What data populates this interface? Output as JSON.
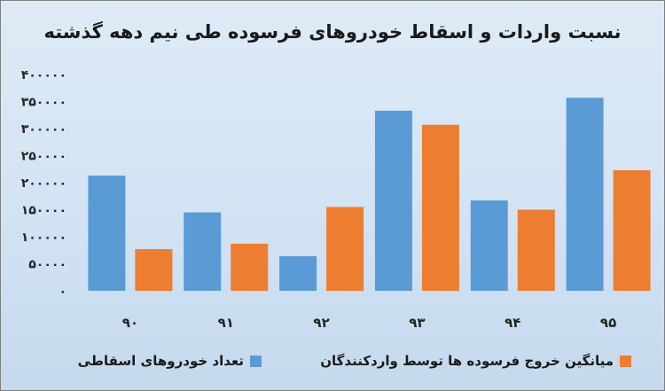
{
  "chart_data": {
    "type": "bar",
    "title": "نسبت واردات و اسقاط خودروهای فرسوده طی نیم دهه گذشته",
    "categories": [
      "۹۰",
      "۹۱",
      "۹۲",
      "۹۳",
      "۹۴",
      "۹۵"
    ],
    "series": [
      {
        "name": "تعداد خودروهای اسقاطی",
        "color": "#5b9bd5",
        "values": [
          213000,
          145000,
          64000,
          333000,
          167000,
          357000
        ]
      },
      {
        "name": "میانگین خروج فرسوده ها توسط واردکنندگان",
        "color": "#ed7d31",
        "values": [
          77000,
          87000,
          155000,
          307000,
          150000,
          223000
        ]
      }
    ],
    "ylim": [
      0,
      400000
    ],
    "yticks": [
      0,
      50000,
      100000,
      150000,
      200000,
      250000,
      300000,
      350000,
      400000
    ],
    "ytick_labels": [
      "۰",
      "۵۰۰۰۰",
      "۱۰۰۰۰۰",
      "۱۵۰۰۰۰",
      "۲۰۰۰۰۰",
      "۲۵۰۰۰۰",
      "۳۰۰۰۰۰",
      "۳۵۰۰۰۰",
      "۴۰۰۰۰۰"
    ],
    "grid": false,
    "legend_position": "bottom"
  }
}
